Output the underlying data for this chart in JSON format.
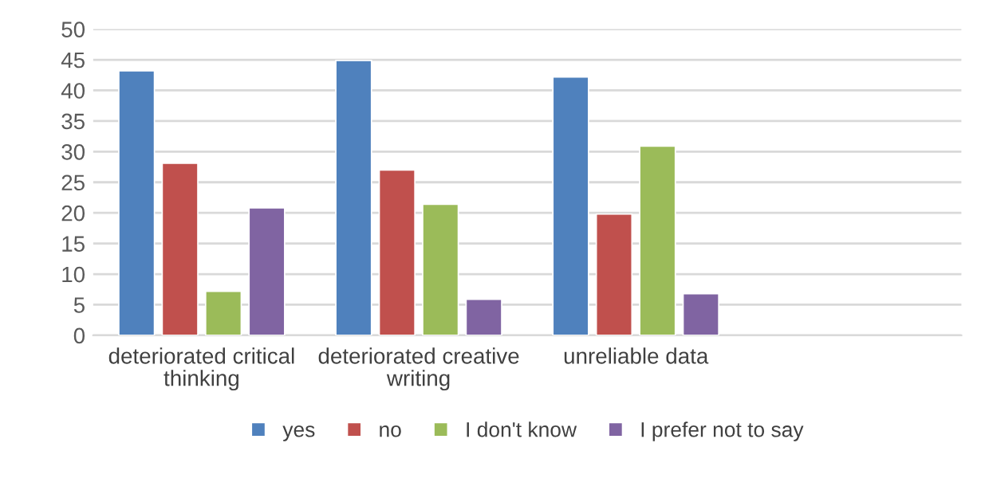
{
  "chart_data": {
    "type": "bar",
    "categories": [
      "deteriorated critical thinking",
      "deteriorated creative writing",
      "unreliable data",
      null
    ],
    "series": [
      {
        "name": "yes",
        "color": "#4f81bd",
        "values": [
          43.2,
          44.9,
          42.2,
          null
        ]
      },
      {
        "name": "no",
        "color": "#c0504d",
        "values": [
          28.1,
          27.0,
          19.8,
          null
        ]
      },
      {
        "name": "I don't know",
        "color": "#9bbb59",
        "values": [
          7.2,
          21.4,
          30.9,
          null
        ]
      },
      {
        "name": "I prefer not to say",
        "color": "#8064a2",
        "values": [
          20.8,
          5.9,
          6.8,
          null
        ]
      }
    ],
    "ylim": [
      0,
      50
    ],
    "yticks": [
      0,
      5,
      10,
      15,
      20,
      25,
      30,
      35,
      40,
      45,
      50
    ],
    "grid": "y",
    "legend": "bottom"
  }
}
